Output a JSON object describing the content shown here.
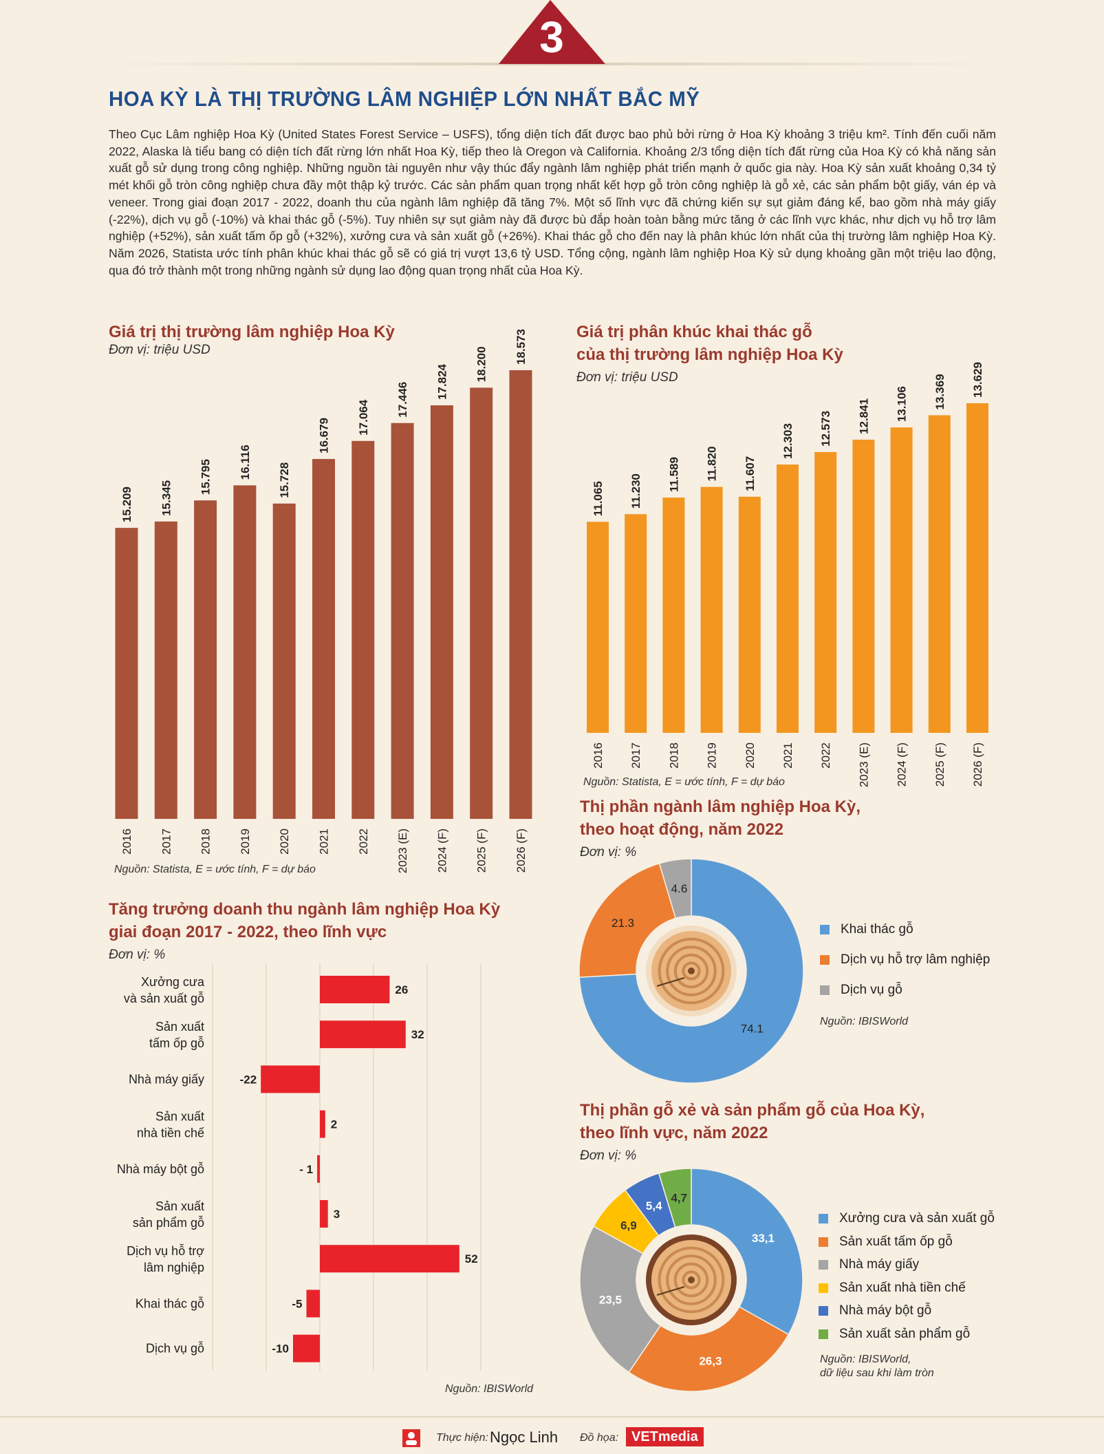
{
  "header": {
    "section_number": "3",
    "title": "HOA KỲ LÀ THỊ TRƯỜNG LÂM NGHIỆP LỚN NHẤT BẮC MỸ",
    "intro": "Theo Cục Lâm nghiệp Hoa Kỳ (United States Forest Service – USFS), tổng diện tích đất được bao phủ bởi rừng ở Hoa Kỳ khoảng 3 triệu km². Tính đến cuối năm 2022, Alaska là tiểu bang có diện tích đất rừng lớn nhất Hoa Kỳ, tiếp theo là Oregon và California. Khoảng 2/3 tổng diện tích đất rừng của Hoa Kỳ có khả năng sản xuất gỗ sử dụng trong công nghiệp. Những nguồn tài nguyên như vậy thúc đẩy ngành lâm nghiệp phát triển mạnh ở quốc gia này. Hoa Kỳ sản xuất khoảng 0,34 tỷ mét khối gỗ tròn công nghiệp chưa đầy một thập kỷ trước. Các sản phẩm quan trọng nhất kết hợp gỗ tròn công nghiệp là gỗ xẻ, các sản phẩm bột giấy, ván ép và veneer. Trong giai đoạn 2017 - 2022, doanh thu của ngành lâm nghiệp đã tăng 7%. Một số lĩnh vực đã chứng kiến sự sụt giảm đáng kể, bao gồm nhà máy giấy (-22%), dịch vụ gỗ (-10%) và khai thác gỗ (-5%). Tuy nhiên sự sụt giảm này đã được bù đắp hoàn toàn bằng mức tăng ở các lĩnh vực khác, như dịch vụ hỗ trợ lâm nghiệp (+52%), sản xuất tấm ốp gỗ (+32%), xưởng cưa và sản xuất gỗ (+26%). Khai thác gỗ cho đến nay là phân khúc lớn nhất của thị trường lâm nghiệp Hoa Kỳ. Năm 2026, Statista ước tính phân khúc khai thác gỗ sẽ có giá trị vượt 13,6 tỷ USD. Tổng cộng, ngành lâm nghiệp Hoa Kỳ sử dụng khoảng gần một triệu lao động, qua đó trở thành một trong những ngành sử dụng lao động quan trọng nhất của Hoa Kỳ."
  },
  "colors": {
    "brown_bar": "#a9523a",
    "orange_bar": "#f3961f",
    "red_bar": "#e8232a",
    "title_blue": "#1f4d8a",
    "title_red": "#9a3a2d",
    "badge": "#a8202c"
  },
  "chart_data": [
    {
      "type": "bar",
      "title": "Giá trị thị trường lâm nghiệp Hoa Kỳ",
      "unit": "Đơn vị: triệu USD",
      "source": "Nguồn: Statista, E = ước tính, F = dự báo",
      "categories": [
        "2016",
        "2017",
        "2018",
        "2019",
        "2020",
        "2021",
        "2022",
        "2023 (E)",
        "2024 (F)",
        "2025 (F)",
        "2026 (F)"
      ],
      "values": [
        15209,
        15345,
        15795,
        16116,
        15728,
        16679,
        17064,
        17446,
        17824,
        18200,
        18573
      ],
      "value_labels": [
        "15.209",
        "15.345",
        "15.795",
        "16.116",
        "15.728",
        "16.679",
        "17.064",
        "17.446",
        "17.824",
        "18.200",
        "18.573"
      ]
    },
    {
      "type": "bar",
      "title": "Giá trị phân khúc khai thác gỗ của thị trường lâm nghiệp Hoa Kỳ",
      "title_lines": [
        "Giá trị phân khúc khai thác gỗ",
        "của thị trường lâm nghiệp Hoa Kỳ"
      ],
      "unit": "Đơn vị: triệu USD",
      "source": "Nguồn: Statista, E = ước tính, F = dự báo",
      "categories": [
        "2016",
        "2017",
        "2018",
        "2019",
        "2020",
        "2021",
        "2022",
        "2023 (E)",
        "2024 (F)",
        "2025 (F)",
        "2026 (F)"
      ],
      "values": [
        11065,
        11230,
        11589,
        11820,
        11607,
        12303,
        12573,
        12841,
        13106,
        13369,
        13629
      ],
      "value_labels": [
        "11.065",
        "11.230",
        "11.589",
        "11.820",
        "11.607",
        "12.303",
        "12.573",
        "12.841",
        "13.106",
        "13.369",
        "13.629"
      ]
    },
    {
      "type": "bar",
      "orientation": "horizontal",
      "title": "Tăng trưởng doanh thu ngành lâm nghiệp Hoa Kỳ giai đoạn 2017 - 2022, theo lĩnh vực",
      "title_lines": [
        "Tăng trưởng doanh thu ngành lâm nghiệp Hoa Kỳ",
        "giai đoạn 2017 - 2022, theo lĩnh vực"
      ],
      "unit": "Đơn vị: %",
      "source": "Nguồn: IBISWorld",
      "categories": [
        [
          "Xưởng cưa",
          "và sản xuất gỗ"
        ],
        [
          "Sản xuất",
          "tấm ốp gỗ"
        ],
        [
          "Nhà máy giấy"
        ],
        [
          "Sản xuất",
          "nhà tiền chế"
        ],
        [
          "Nhà máy bột gỗ"
        ],
        [
          "Sản xuất",
          "sản phẩm gỗ"
        ],
        [
          "Dịch vụ hỗ trợ",
          "lâm nghiệp"
        ],
        [
          "Khai thác gỗ"
        ],
        [
          "Dịch vụ gỗ"
        ]
      ],
      "values": [
        26,
        32,
        -22,
        2,
        -1,
        3,
        52,
        -5,
        -10
      ],
      "value_labels": [
        "26",
        "32",
        "-22",
        "2",
        "- 1",
        "3",
        "52",
        "-5",
        "-10"
      ]
    },
    {
      "type": "pie",
      "title": "Thị phần ngành lâm nghiệp Hoa Kỳ, theo hoạt động, năm 2022",
      "title_lines": [
        "Thị phần ngành lâm nghiệp Hoa Kỳ,",
        "theo hoạt động, năm 2022"
      ],
      "unit": "Đơn vị: %",
      "source": "Nguồn: IBISWorld",
      "labels": [
        "Khai thác gỗ",
        "Dịch vụ hỗ trợ lâm nghiệp",
        "Dịch vụ gỗ"
      ],
      "values": [
        74.1,
        21.3,
        4.6
      ],
      "value_labels": [
        "74.1",
        "21.3",
        "4.6"
      ],
      "colors": [
        "#5b9bd5",
        "#ed7d31",
        "#a5a5a5"
      ]
    },
    {
      "type": "pie",
      "title": "Thị phần gỗ xẻ và sản phẩm gỗ của Hoa Kỳ, theo lĩnh vực, năm 2022",
      "title_lines": [
        "Thị phần gỗ xẻ và sản phẩm gỗ của Hoa Kỳ,",
        "theo lĩnh vực, năm 2022"
      ],
      "unit": "Đơn vị: %",
      "source_lines": [
        "Nguồn: IBISWorld,",
        "dữ liệu sau khi làm tròn"
      ],
      "labels": [
        "Xưởng cưa và sản xuất gỗ",
        "Sản xuất tấm ốp gỗ",
        "Nhà máy giấy",
        "Sản xuất nhà tiền chế",
        "Nhà máy bột gỗ",
        "Sản xuất sản phẩm gỗ"
      ],
      "values": [
        33.1,
        26.3,
        23.5,
        6.9,
        5.4,
        4.7
      ],
      "value_labels": [
        "33,1",
        "26,3",
        "23,5",
        "6,9",
        "5,4",
        "4,7"
      ],
      "colors": [
        "#5b9bd5",
        "#ed7d31",
        "#a5a5a5",
        "#ffc000",
        "#4472c4",
        "#70ad47"
      ]
    }
  ],
  "footer": {
    "made_by_label": "Thực hiện:",
    "made_by_name": "Ngọc Linh",
    "graphics_label": "Đồ họa:",
    "brand": "VETmedia"
  }
}
